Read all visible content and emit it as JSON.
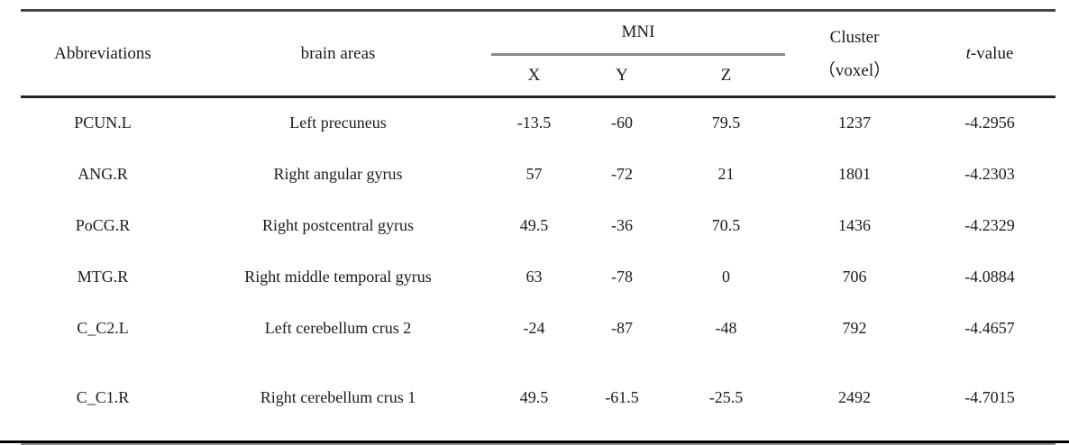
{
  "table": {
    "header": {
      "abbreviations": "Abbreviations",
      "brain_areas": "brain areas",
      "mni": "MNI",
      "x": "X",
      "y": "Y",
      "z": "Z",
      "cluster_line1": "Cluster",
      "cluster_line2": "（voxel）",
      "t_italic": "t",
      "t_rest": "-value"
    },
    "rows": [
      {
        "abbr": "PCUN.L",
        "area": "Left precuneus",
        "x": "-13.5",
        "y": "-60",
        "z": "79.5",
        "cluster": "1237",
        "t": "-4.2956"
      },
      {
        "abbr": "ANG.R",
        "area": "Right angular gyrus",
        "x": "57",
        "y": "-72",
        "z": "21",
        "cluster": "1801",
        "t": "-4.2303"
      },
      {
        "abbr": "PoCG.R",
        "area": "Right postcentral gyrus",
        "x": "49.5",
        "y": "-36",
        "z": "70.5",
        "cluster": "1436",
        "t": "-4.2329"
      },
      {
        "abbr": "MTG.R",
        "area": "Right middle temporal gyrus",
        "x": "63",
        "y": "-78",
        "z": "0",
        "cluster": "706",
        "t": "-4.0884"
      },
      {
        "abbr": "C_C2.L",
        "area": "Left cerebellum crus 2",
        "x": "-24",
        "y": "-87",
        "z": "-48",
        "cluster": "792",
        "t": "-4.4657"
      },
      {
        "abbr": "C_C1.R",
        "area": "Right cerebellum crus 1",
        "x": "49.5",
        "y": "-61.5",
        "z": "-25.5",
        "cluster": "2492",
        "t": "-4.7015"
      }
    ],
    "colors": {
      "rule_top": "#454545",
      "rule_header": "#232323",
      "rule_gray": "#8a8a8a",
      "rule_bottom_black": "#000000"
    }
  }
}
